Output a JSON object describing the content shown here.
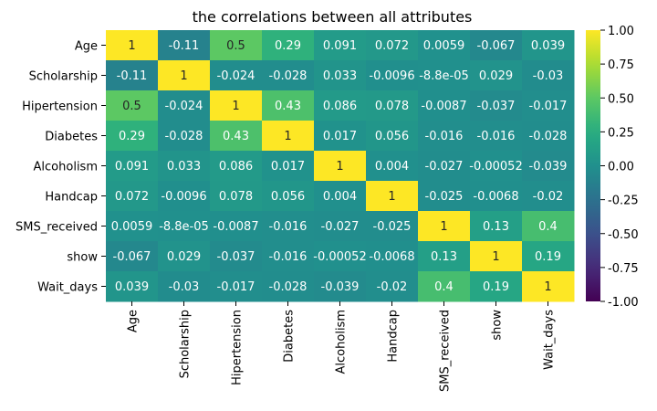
{
  "chart_data": {
    "type": "heatmap",
    "title": "the correlations between all attributes",
    "rows": [
      "Age",
      "Scholarship",
      "Hipertension",
      "Diabetes",
      "Alcoholism",
      "Handcap",
      "SMS_received",
      "show",
      "Wait_days"
    ],
    "columns": [
      "Age",
      "Scholarship",
      "Hipertension",
      "Diabetes",
      "Alcoholism",
      "Handcap",
      "SMS_received",
      "show",
      "Wait_days"
    ],
    "values": [
      [
        1,
        -0.11,
        0.5,
        0.29,
        0.091,
        0.072,
        0.0059,
        -0.067,
        0.039
      ],
      [
        -0.11,
        1,
        -0.024,
        -0.028,
        0.033,
        -0.0096,
        -8.8e-05,
        0.029,
        -0.03
      ],
      [
        0.5,
        -0.024,
        1,
        0.43,
        0.086,
        0.078,
        -0.0087,
        -0.037,
        -0.017
      ],
      [
        0.29,
        -0.028,
        0.43,
        1,
        0.017,
        0.056,
        -0.016,
        -0.016,
        -0.028
      ],
      [
        0.091,
        0.033,
        0.086,
        0.017,
        1,
        0.004,
        -0.027,
        -0.00052,
        -0.039
      ],
      [
        0.072,
        -0.0096,
        0.078,
        0.056,
        0.004,
        1,
        -0.025,
        -0.0068,
        -0.02
      ],
      [
        0.0059,
        -8.8e-05,
        -0.0087,
        -0.016,
        -0.027,
        -0.025,
        1,
        0.13,
        0.4
      ],
      [
        -0.067,
        0.029,
        -0.037,
        -0.016,
        -0.00052,
        -0.0068,
        0.13,
        1,
        0.19
      ],
      [
        0.039,
        -0.03,
        -0.017,
        -0.028,
        -0.039,
        -0.02,
        0.4,
        0.19,
        1
      ]
    ],
    "annotations": [
      [
        "1",
        "-0.11",
        "0.5",
        "0.29",
        "0.091",
        "0.072",
        "0.0059",
        "-0.067",
        "0.039"
      ],
      [
        "-0.11",
        "1",
        "-0.024",
        "-0.028",
        "0.033",
        "-0.0096",
        "-8.8e-05",
        "0.029",
        "-0.03"
      ],
      [
        "0.5",
        "-0.024",
        "1",
        "0.43",
        "0.086",
        "0.078",
        "-0.0087",
        "-0.037",
        "-0.017"
      ],
      [
        "0.29",
        "-0.028",
        "0.43",
        "1",
        "0.017",
        "0.056",
        "-0.016",
        "-0.016",
        "-0.028"
      ],
      [
        "0.091",
        "0.033",
        "0.086",
        "0.017",
        "1",
        "0.004",
        "-0.027",
        "-0.00052",
        "-0.039"
      ],
      [
        "0.072",
        "-0.0096",
        "0.078",
        "0.056",
        "0.004",
        "1",
        "-0.025",
        "-0.0068",
        "-0.02"
      ],
      [
        "0.0059",
        "-8.8e-05",
        "-0.0087",
        "-0.016",
        "-0.027",
        "-0.025",
        "1",
        "0.13",
        "0.4"
      ],
      [
        "-0.067",
        "0.029",
        "-0.037",
        "-0.016",
        "-0.00052",
        "-0.0068",
        "0.13",
        "1",
        "0.19"
      ],
      [
        "0.039",
        "-0.03",
        "-0.017",
        "-0.028",
        "-0.039",
        "-0.02",
        "0.4",
        "0.19",
        "1"
      ]
    ],
    "colormap": "viridis",
    "vmin": -1,
    "vmax": 1,
    "colorbar_ticks": [
      "-1.00",
      "-0.75",
      "-0.50",
      "-0.25",
      "0.00",
      "0.25",
      "0.50",
      "0.75",
      "1.00"
    ],
    "colorbar_tick_values": [
      -1,
      -0.75,
      -0.5,
      -0.25,
      0,
      0.25,
      0.5,
      0.75,
      1
    ]
  }
}
